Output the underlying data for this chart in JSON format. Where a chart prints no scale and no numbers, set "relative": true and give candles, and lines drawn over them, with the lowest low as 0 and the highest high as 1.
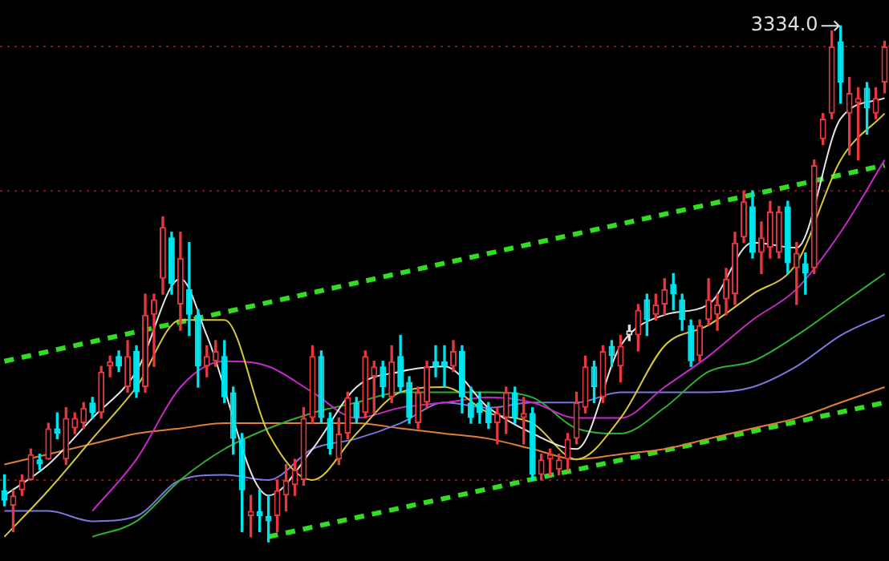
{
  "chart_data": {
    "type": "candlestick",
    "relative": true,
    "colors": [
      "#00e5ee",
      "#e8383d",
      "#e8383d",
      "#e8383d",
      "#00e5ee",
      "#e8383d",
      "#00e5ee",
      "#e8383d",
      "#e8383d",
      "#e8383d",
      "#00e5ee",
      "#e8383d",
      "#e8383d",
      "#00e5ee",
      "#e8383d",
      "#00e5ee",
      "#e8383d",
      "#e8383d",
      "#e8383d",
      "#00e5ee",
      "#e8383d",
      "#00e5ee",
      "#00e5ee",
      "#e8383d",
      "#e8383d",
      "#00e5ee",
      "#00e5ee",
      "#00e5ee",
      "#e8383d",
      "#00e5ee",
      "#00e5ee",
      "#e8383d",
      "#e8383d",
      "#e8383d",
      "#e8383d",
      "#e8383d",
      "#00e5ee",
      "#00e5ee",
      "#e8383d",
      "#e8383d",
      "#00e5ee",
      "#e8383d",
      "#e8383d",
      "#00e5ee",
      "#e8383d",
      "#00e5ee",
      "#00e5ee",
      "#e8383d",
      "#e8383d",
      "#00e5ee",
      "#00e5ee",
      "#e8383d",
      "#00e5ee",
      "#00e5ee",
      "#00e5ee",
      "#00e5ee",
      "#e8383d",
      "#e8383d",
      "#00e5ee",
      "#e8383d",
      "#00e5ee",
      "#e8383d",
      "#e8383d",
      "#e8383d",
      "#e8383d",
      "#e8383d",
      "#e8383d",
      "#00e5ee",
      "#e8383d",
      "#00e5ee",
      "#e8383d",
      "#e0e0e0",
      "#e8383d",
      "#00e5ee",
      "#e8383d",
      "#e8383d",
      "#00e5ee",
      "#00e5ee",
      "#00e5ee",
      "#e8383d",
      "#e8383d",
      "#e8383d",
      "#e8383d",
      "#e8383d",
      "#e8383d",
      "#00e5ee",
      "#e8383d",
      "#e8383d",
      "#e8383d",
      "#00e5ee",
      "#e8383d",
      "#00e5ee",
      "#e8383d",
      "#e8383d",
      "#e8383d",
      "#00e5ee",
      "#e8383d",
      "#e8383d",
      "#00e5ee",
      "#e8383d",
      "#e8383d"
    ],
    "categories": [
      null,
      null,
      null,
      null,
      null,
      null,
      null,
      null,
      null,
      null,
      null,
      null,
      null,
      null,
      null,
      null,
      null,
      null,
      null,
      null,
      null,
      null,
      null,
      null,
      null,
      null,
      null,
      null,
      null,
      null,
      null,
      null,
      null,
      null,
      null,
      null,
      null,
      null,
      null,
      null,
      null,
      null,
      null,
      null,
      null,
      null,
      null,
      null,
      null,
      null,
      null,
      null,
      null,
      null,
      null,
      null,
      null,
      null,
      null,
      null,
      null,
      null,
      null,
      null,
      null,
      null,
      null,
      null,
      null,
      null,
      null,
      null,
      null,
      null,
      null,
      null,
      null,
      null,
      null,
      null,
      null,
      null,
      null,
      null,
      null,
      null,
      null,
      null,
      null,
      null,
      null,
      null,
      null,
      null,
      null,
      null,
      null,
      null,
      null,
      null,
      null
    ],
    "ohlc": [
      [
        0.1,
        0.13,
        0.07,
        0.08
      ],
      [
        0.07,
        0.1,
        0.02,
        0.09
      ],
      [
        0.1,
        0.13,
        0.09,
        0.12
      ],
      [
        0.12,
        0.18,
        0.12,
        0.17
      ],
      [
        0.16,
        0.17,
        0.14,
        0.15
      ],
      [
        0.16,
        0.23,
        0.16,
        0.22
      ],
      [
        0.22,
        0.25,
        0.2,
        0.21
      ],
      [
        0.16,
        0.26,
        0.15,
        0.24
      ],
      [
        0.22,
        0.25,
        0.21,
        0.24
      ],
      [
        0.23,
        0.27,
        0.22,
        0.26
      ],
      [
        0.27,
        0.28,
        0.24,
        0.25
      ],
      [
        0.25,
        0.34,
        0.24,
        0.33
      ],
      [
        0.34,
        0.36,
        0.32,
        0.35
      ],
      [
        0.36,
        0.37,
        0.33,
        0.34
      ],
      [
        0.3,
        0.39,
        0.29,
        0.36
      ],
      [
        0.37,
        0.38,
        0.28,
        0.29
      ],
      [
        0.3,
        0.48,
        0.29,
        0.44
      ],
      [
        0.44,
        0.48,
        0.34,
        0.47
      ],
      [
        0.51,
        0.63,
        0.48,
        0.61
      ],
      [
        0.59,
        0.6,
        0.48,
        0.5
      ],
      [
        0.46,
        0.6,
        0.41,
        0.55
      ],
      [
        0.49,
        0.58,
        0.4,
        0.44
      ],
      [
        0.44,
        0.45,
        0.3,
        0.34
      ],
      [
        0.34,
        0.38,
        0.32,
        0.36
      ],
      [
        0.35,
        0.39,
        0.34,
        0.37
      ],
      [
        0.36,
        0.39,
        0.27,
        0.28
      ],
      [
        0.29,
        0.3,
        0.17,
        0.2
      ],
      [
        0.2,
        0.21,
        0.02,
        0.1
      ],
      [
        0.05,
        0.09,
        0.01,
        0.06
      ],
      [
        0.06,
        0.1,
        0.02,
        0.05
      ],
      [
        0.05,
        0.09,
        0,
        0.04
      ],
      [
        0.05,
        0.12,
        0.02,
        0.1
      ],
      [
        0.09,
        0.15,
        0.06,
        0.12
      ],
      [
        0.11,
        0.16,
        0.09,
        0.14
      ],
      [
        0.12,
        0.26,
        0.11,
        0.24
      ],
      [
        0.24,
        0.38,
        0.23,
        0.36
      ],
      [
        0.36,
        0.37,
        0.23,
        0.24
      ],
      [
        0.24,
        0.25,
        0.17,
        0.18
      ],
      [
        0.16,
        0.24,
        0.15,
        0.21
      ],
      [
        0.21,
        0.29,
        0.2,
        0.28
      ],
      [
        0.27,
        0.28,
        0.23,
        0.24
      ],
      [
        0.25,
        0.37,
        0.24,
        0.36
      ],
      [
        0.32,
        0.35,
        0.25,
        0.34
      ],
      [
        0.34,
        0.35,
        0.28,
        0.3
      ],
      [
        0.28,
        0.38,
        0.27,
        0.35
      ],
      [
        0.36,
        0.4,
        0.29,
        0.3
      ],
      [
        0.31,
        0.32,
        0.23,
        0.24
      ],
      [
        0.23,
        0.3,
        0.22,
        0.29
      ],
      [
        0.27,
        0.35,
        0.26,
        0.34
      ],
      [
        0.35,
        0.38,
        0.32,
        0.34
      ],
      [
        0.35,
        0.38,
        0.3,
        0.34
      ],
      [
        0.34,
        0.39,
        0.33,
        0.37
      ],
      [
        0.37,
        0.38,
        0.25,
        0.28
      ],
      [
        0.27,
        0.3,
        0.23,
        0.24
      ],
      [
        0.27,
        0.29,
        0.23,
        0.25
      ],
      [
        0.26,
        0.27,
        0.22,
        0.23
      ],
      [
        0.23,
        0.26,
        0.19,
        0.25
      ],
      [
        0.24,
        0.3,
        0.21,
        0.29
      ],
      [
        0.29,
        0.3,
        0.23,
        0.24
      ],
      [
        0.24,
        0.28,
        0.19,
        0.25
      ],
      [
        0.25,
        0.26,
        0.12,
        0.13
      ],
      [
        0.13,
        0.17,
        0.12,
        0.16
      ],
      [
        0.16,
        0.18,
        0.13,
        0.17
      ],
      [
        0.14,
        0.17,
        0.13,
        0.16
      ],
      [
        0.16,
        0.21,
        0.14,
        0.2
      ],
      [
        0.2,
        0.29,
        0.19,
        0.27
      ],
      [
        0.26,
        0.36,
        0.25,
        0.34
      ],
      [
        0.34,
        0.35,
        0.27,
        0.3
      ],
      [
        0.28,
        0.38,
        0.27,
        0.37
      ],
      [
        0.38,
        0.39,
        0.34,
        0.36
      ],
      [
        0.34,
        0.4,
        0.31,
        0.38
      ],
      [
        0.4,
        0.42,
        0.39,
        0.41
      ],
      [
        0.4,
        0.46,
        0.37,
        0.45
      ],
      [
        0.47,
        0.48,
        0.4,
        0.43
      ],
      [
        0.44,
        0.48,
        0.43,
        0.46
      ],
      [
        0.46,
        0.51,
        0.44,
        0.49
      ],
      [
        0.5,
        0.52,
        0.45,
        0.48
      ],
      [
        0.47,
        0.48,
        0.41,
        0.43
      ],
      [
        0.42,
        0.43,
        0.34,
        0.35
      ],
      [
        0.36,
        0.43,
        0.35,
        0.42
      ],
      [
        0.43,
        0.51,
        0.42,
        0.47
      ],
      [
        0.44,
        0.48,
        0.41,
        0.46
      ],
      [
        0.47,
        0.53,
        0.44,
        0.51
      ],
      [
        0.48,
        0.6,
        0.46,
        0.58
      ],
      [
        0.59,
        0.68,
        0.58,
        0.66
      ],
      [
        0.65,
        0.68,
        0.55,
        0.56
      ],
      [
        0.56,
        0.62,
        0.52,
        0.59
      ],
      [
        0.57,
        0.66,
        0.55,
        0.64
      ],
      [
        0.56,
        0.65,
        0.55,
        0.64
      ],
      [
        0.65,
        0.66,
        0.52,
        0.54
      ],
      [
        0.53,
        0.58,
        0.46,
        0.56
      ],
      [
        0.54,
        0.56,
        0.48,
        0.52
      ],
      [
        0.53,
        0.74,
        0.52,
        0.73
      ],
      [
        0.78,
        0.83,
        0.77,
        0.82
      ],
      [
        0.83,
        0.99,
        0.82,
        0.96
      ],
      [
        0.97,
        1,
        0.85,
        0.89
      ],
      [
        0.83,
        0.9,
        0.75,
        0.87
      ],
      [
        0.85,
        0.88,
        0.74,
        0.86
      ],
      [
        0.88,
        0.89,
        0.79,
        0.84
      ],
      [
        0.83,
        0.88,
        0.82,
        0.86
      ],
      [
        0.89,
        0.97,
        0.87,
        0.96
      ]
    ],
    "series": [
      {
        "type": "line",
        "color": "#e6e6e6",
        "line_style": "solid",
        "values": [
          0.09,
          null,
          null,
          null,
          null,
          0.15,
          null,
          null,
          null,
          null,
          0.24,
          null,
          null,
          null,
          null,
          0.33,
          null,
          null,
          null,
          null,
          0.51,
          null,
          null,
          0.4,
          null,
          null,
          null,
          null,
          null,
          null,
          0.09,
          null,
          null,
          null,
          null,
          0.18,
          null,
          null,
          null,
          null,
          0.3,
          null,
          null,
          null,
          null,
          0.33,
          null,
          null,
          null,
          null,
          0.34,
          null,
          null,
          null,
          null,
          0.26,
          null,
          null,
          null,
          null,
          0.21,
          null,
          null,
          null,
          null,
          0.18,
          null,
          null,
          null,
          null,
          0.38,
          null,
          null,
          null,
          null,
          0.44,
          null,
          null,
          null,
          null,
          0.46,
          null,
          null,
          null,
          null,
          0.58,
          null,
          null,
          null,
          null,
          0.57,
          null,
          null,
          null,
          null,
          0.82,
          null,
          null,
          null,
          null,
          0.86
        ]
      },
      {
        "type": "line",
        "color": "#d8c838",
        "line_style": "solid",
        "values": [
          0.01,
          null,
          null,
          null,
          null,
          0.1,
          null,
          null,
          null,
          null,
          0.2,
          null,
          null,
          null,
          null,
          0.3,
          null,
          null,
          null,
          null,
          0.43,
          null,
          null,
          null,
          null,
          0.43,
          null,
          null,
          null,
          null,
          0.21,
          null,
          null,
          null,
          null,
          0.12,
          null,
          null,
          null,
          null,
          0.21,
          null,
          null,
          null,
          null,
          0.29,
          null,
          null,
          null,
          null,
          0.3,
          null,
          null,
          null,
          null,
          0.25,
          null,
          null,
          null,
          null,
          0.23,
          null,
          null,
          null,
          null,
          0.16,
          null,
          null,
          null,
          null,
          0.24,
          null,
          null,
          null,
          null,
          0.38,
          null,
          null,
          null,
          null,
          0.42,
          null,
          null,
          null,
          null,
          0.48,
          null,
          null,
          null,
          null,
          0.54,
          null,
          null,
          null,
          null,
          0.74,
          null,
          null,
          null,
          null,
          0.83
        ]
      },
      {
        "type": "line",
        "color": "#c828c8",
        "line_style": "solid",
        "values": [
          null,
          null,
          null,
          null,
          null,
          null,
          null,
          null,
          null,
          null,
          0.06,
          null,
          null,
          null,
          null,
          0.16,
          null,
          null,
          null,
          null,
          0.3,
          null,
          null,
          null,
          null,
          0.35,
          null,
          null,
          null,
          null,
          0.34,
          null,
          null,
          null,
          null,
          0.29,
          null,
          null,
          null,
          null,
          0.24,
          null,
          null,
          null,
          null,
          0.26,
          null,
          null,
          null,
          null,
          0.27,
          null,
          null,
          null,
          null,
          0.28,
          null,
          null,
          null,
          null,
          0.27,
          null,
          null,
          null,
          null,
          0.24,
          null,
          null,
          null,
          null,
          0.24,
          null,
          null,
          null,
          null,
          0.3,
          null,
          null,
          null,
          null,
          0.36,
          null,
          null,
          null,
          null,
          0.43,
          null,
          null,
          null,
          null,
          0.49,
          null,
          null,
          null,
          null,
          0.6,
          null,
          null,
          null,
          null,
          0.74
        ]
      },
      {
        "type": "line",
        "color": "#30b030",
        "line_style": "solid",
        "values": [
          null,
          null,
          null,
          null,
          null,
          null,
          null,
          null,
          null,
          null,
          0.01,
          null,
          null,
          null,
          null,
          0.04,
          null,
          null,
          null,
          null,
          0.12,
          null,
          null,
          null,
          null,
          0.18,
          null,
          null,
          null,
          null,
          0.22,
          null,
          null,
          null,
          null,
          0.25,
          null,
          null,
          null,
          null,
          0.27,
          null,
          null,
          null,
          null,
          0.29,
          null,
          null,
          null,
          null,
          0.29,
          null,
          null,
          null,
          null,
          0.29,
          null,
          null,
          null,
          null,
          0.28,
          null,
          null,
          null,
          null,
          0.22,
          null,
          null,
          null,
          null,
          0.21,
          null,
          null,
          null,
          null,
          0.26,
          null,
          null,
          null,
          null,
          0.33,
          null,
          null,
          null,
          null,
          0.35,
          null,
          null,
          null,
          null,
          0.4,
          null,
          null,
          null,
          null,
          0.46,
          null,
          null,
          null,
          null,
          0.52
        ]
      },
      {
        "type": "line",
        "color": "#7a78e0",
        "line_style": "solid",
        "values": [
          0.06,
          null,
          null,
          null,
          null,
          0.06,
          null,
          null,
          null,
          null,
          0.04,
          null,
          null,
          null,
          null,
          0.05,
          null,
          null,
          null,
          null,
          0.12,
          null,
          null,
          null,
          null,
          0.13,
          null,
          null,
          null,
          null,
          0.12,
          null,
          null,
          null,
          null,
          0.18,
          null,
          null,
          null,
          null,
          0.2,
          null,
          null,
          null,
          null,
          0.23,
          null,
          null,
          null,
          null,
          0.27,
          null,
          null,
          null,
          null,
          0.26,
          null,
          null,
          null,
          null,
          0.27,
          null,
          null,
          null,
          null,
          0.27,
          null,
          null,
          null,
          null,
          0.29,
          null,
          null,
          null,
          null,
          0.29,
          null,
          null,
          null,
          null,
          0.29,
          null,
          null,
          null,
          null,
          0.3,
          null,
          null,
          null,
          null,
          0.34,
          null,
          null,
          null,
          null,
          0.4,
          null,
          null,
          null,
          null,
          0.44
        ]
      },
      {
        "type": "line",
        "color": "#e08030",
        "line_style": "solid",
        "values": [
          0.15,
          null,
          null,
          null,
          null,
          0.17,
          null,
          null,
          null,
          null,
          0.19,
          null,
          null,
          null,
          null,
          0.21,
          null,
          null,
          null,
          null,
          0.22,
          null,
          null,
          null,
          null,
          0.23,
          null,
          null,
          null,
          null,
          0.23,
          null,
          null,
          null,
          null,
          0.23,
          null,
          null,
          null,
          null,
          0.23,
          null,
          null,
          null,
          null,
          0.22,
          null,
          null,
          null,
          null,
          0.21,
          null,
          null,
          null,
          null,
          0.2,
          null,
          null,
          null,
          null,
          0.18,
          null,
          null,
          null,
          null,
          0.16,
          null,
          null,
          null,
          null,
          0.17,
          null,
          null,
          null,
          null,
          0.18,
          null,
          null,
          null,
          null,
          0.2,
          null,
          null,
          null,
          null,
          0.22,
          null,
          null,
          null,
          null,
          0.24,
          null,
          null,
          null,
          null,
          0.27,
          null,
          null,
          null,
          null,
          0.3
        ]
      },
      {
        "type": "line",
        "color": "#33dd22",
        "line_style": "dashed",
        "values": [
          0.35,
          null,
          null,
          null,
          null,
          null,
          null,
          null,
          null,
          null,
          null,
          null,
          null,
          null,
          null,
          null,
          null,
          null,
          null,
          null,
          null,
          null,
          null,
          null,
          null,
          null,
          null,
          null,
          null,
          null,
          null,
          null,
          null,
          null,
          null,
          null,
          null,
          null,
          null,
          null,
          null,
          null,
          null,
          null,
          null,
          null,
          null,
          null,
          null,
          null,
          null,
          null,
          null,
          null,
          null,
          null,
          null,
          null,
          null,
          null,
          null,
          null,
          null,
          null,
          null,
          null,
          null,
          null,
          null,
          null,
          null,
          null,
          null,
          null,
          null,
          null,
          null,
          null,
          null,
          null,
          null,
          null,
          null,
          null,
          null,
          null,
          null,
          null,
          null,
          null,
          null,
          null,
          null,
          null,
          null,
          null,
          null,
          null,
          null,
          null,
          0.73
        ]
      },
      {
        "type": "line",
        "color": "#33dd22",
        "line_style": "dashed",
        "values": [
          null,
          null,
          null,
          null,
          null,
          null,
          null,
          null,
          null,
          null,
          null,
          null,
          null,
          null,
          null,
          null,
          null,
          null,
          null,
          null,
          null,
          null,
          null,
          null,
          null,
          null,
          null,
          null,
          null,
          null,
          0.01,
          null,
          null,
          null,
          null,
          null,
          null,
          null,
          null,
          null,
          null,
          null,
          null,
          null,
          null,
          null,
          null,
          null,
          null,
          null,
          null,
          null,
          null,
          null,
          null,
          null,
          null,
          null,
          null,
          null,
          null,
          null,
          null,
          null,
          null,
          null,
          null,
          null,
          null,
          null,
          null,
          null,
          null,
          null,
          null,
          null,
          null,
          null,
          null,
          null,
          null,
          null,
          null,
          null,
          null,
          null,
          null,
          null,
          null,
          null,
          null,
          null,
          null,
          null,
          null,
          null,
          null,
          null,
          null,
          null,
          0.27
        ]
      }
    ],
    "ref_lines": [
      {
        "axis": "y",
        "value": 0.96,
        "color": "#7a1a1a",
        "line_style": "dotted"
      },
      {
        "axis": "y",
        "value": 0.68,
        "color": "#7a1a1a",
        "line_style": "dotted"
      },
      {
        "axis": "y",
        "value": 0.12,
        "color": "#7a1a1a",
        "line_style": "dotted"
      }
    ],
    "annotations": [
      "3334.0"
    ]
  }
}
